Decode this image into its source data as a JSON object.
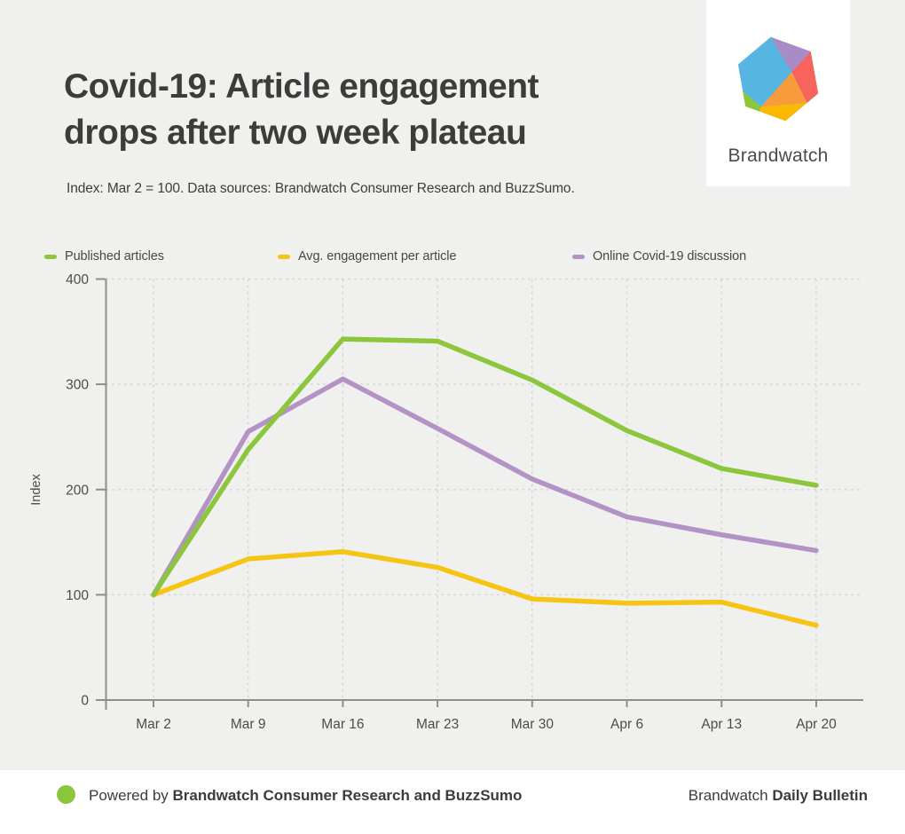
{
  "header": {
    "title_line1": "Covid-19: Article engagement",
    "title_line2": "drops after two week plateau",
    "subtitle": "Index: Mar 2 = 100. Data sources: Brandwatch Consumer Research and BuzzSumo."
  },
  "logo": {
    "wordmark": "Brandwatch",
    "hexagon_colors": {
      "blue": "#56b5e1",
      "purple": "#a98bc5",
      "red": "#f8645c",
      "orange": "#f89c3b",
      "yellow": "#fbb904",
      "green": "#8cc63d"
    }
  },
  "chart_data": {
    "type": "line",
    "title": "Covid-19: Article engagement drops after two week plateau",
    "xlabel": "",
    "ylabel": "Index",
    "ylim": [
      0,
      400
    ],
    "yticks": [
      0,
      100,
      200,
      300,
      400
    ],
    "grid": true,
    "legend_position": "top",
    "categories": [
      "Mar 2",
      "Mar 9",
      "Mar 16",
      "Mar 23",
      "Mar 30",
      "Apr 6",
      "Apr 13",
      "Apr 20"
    ],
    "series": [
      {
        "name": "Published articles",
        "color": "#8cc63d",
        "values": [
          100,
          238,
          343,
          341,
          304,
          256,
          220,
          204
        ]
      },
      {
        "name": "Avg. engagement per article",
        "color": "#f6c415",
        "values": [
          100,
          134,
          141,
          126,
          96,
          92,
          93,
          71
        ]
      },
      {
        "name": "Online Covid-19 discussion",
        "color": "#b392c6",
        "values": [
          100,
          255,
          305,
          258,
          210,
          174,
          157,
          142
        ]
      }
    ]
  },
  "footer": {
    "powered_prefix": "Powered by",
    "powered_source": "Brandwatch Consumer Research and BuzzSumo",
    "brand_regular": "Brandwatch",
    "brand_bold": "Daily Bulletin",
    "dot_color": "#8cc63d"
  },
  "colors": {
    "background": "#f0f0ee",
    "card": "#ffffff",
    "title_text": "#3c3c3b",
    "axis_text": "#4c4c4b",
    "gridline": "#d7d7d5",
    "axis_line": "#8e8e8c"
  }
}
